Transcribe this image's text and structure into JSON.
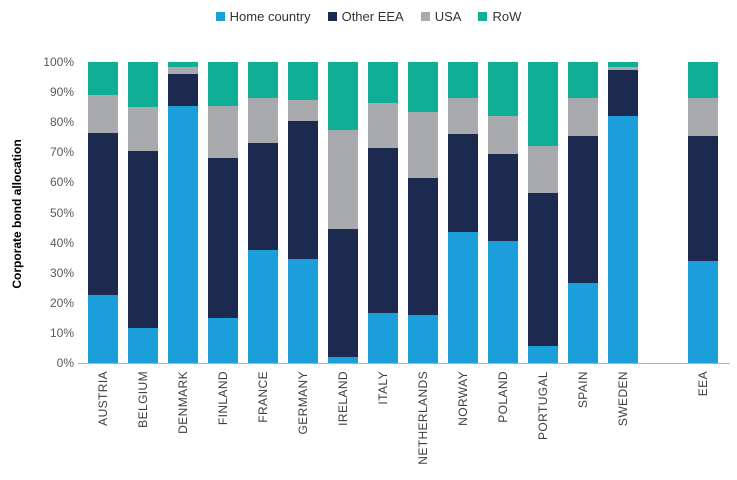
{
  "chart_data": {
    "type": "bar",
    "stacked": true,
    "percent_stacked": true,
    "title": "",
    "xlabel": "",
    "ylabel": "Corporate bond allocation",
    "ylim": [
      0,
      100
    ],
    "y_ticks": [
      "0%",
      "10%",
      "20%",
      "30%",
      "40%",
      "50%",
      "60%",
      "70%",
      "80%",
      "90%",
      "100%"
    ],
    "grid": false,
    "legend_position": "top-center",
    "axis_line_color": "#b3b3b3",
    "categories": [
      "AUSTRIA",
      "BELGIUM",
      "DENMARK",
      "FINLAND",
      "FRANCE",
      "GERMANY",
      "IRELAND",
      "ITALY",
      "NETHERLANDS",
      "NORWAY",
      "POLAND",
      "PORTUGAL",
      "SPAIN",
      "SWEDEN",
      "EEA"
    ],
    "gap_before_index": 14,
    "series": [
      {
        "name": "Home country",
        "color": "#1c9edb",
        "values": [
          22.5,
          11.5,
          85.5,
          15,
          37.5,
          34.5,
          2,
          16.5,
          16,
          43.5,
          40.5,
          5.5,
          26.5,
          82,
          34
        ]
      },
      {
        "name": "Other EEA",
        "color": "#1b2a4e",
        "values": [
          54,
          59,
          10.5,
          53,
          35.5,
          46,
          42.5,
          55,
          45.5,
          32.5,
          29,
          51,
          49,
          15.5,
          41.5
        ]
      },
      {
        "name": "USA",
        "color": "#a8aaad",
        "values": [
          12.5,
          14.5,
          2.5,
          17.5,
          15,
          7,
          33,
          15,
          22,
          12,
          12.5,
          15.5,
          12.5,
          1,
          12.5
        ]
      },
      {
        "name": "RoW",
        "color": "#10ad97",
        "values": [
          11,
          15,
          1.5,
          14.5,
          12,
          12.5,
          22.5,
          13.5,
          16.5,
          12,
          18,
          28,
          12,
          1.5,
          12
        ]
      }
    ]
  }
}
